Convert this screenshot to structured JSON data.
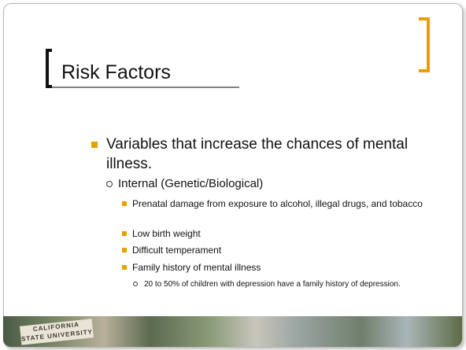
{
  "title": "Risk Factors",
  "bullets": [
    {
      "text": "Variables that increase the chances of mental illness.",
      "children": [
        {
          "text": "Internal (Genetic/Biological)",
          "children": [
            {
              "text": "Prenatal damage from exposure to alcohol, illegal drugs, and tobacco"
            },
            {
              "text": "Low birth weight"
            },
            {
              "text": "Difficult temperament"
            },
            {
              "text": "Family history of mental illness",
              "children": [
                {
                  "text": "20 to 50% of children with depression have a family history of depression."
                }
              ]
            }
          ]
        }
      ]
    }
  ],
  "footer": {
    "logo": "CALIFORNIA STATE UNIVERSITY"
  }
}
